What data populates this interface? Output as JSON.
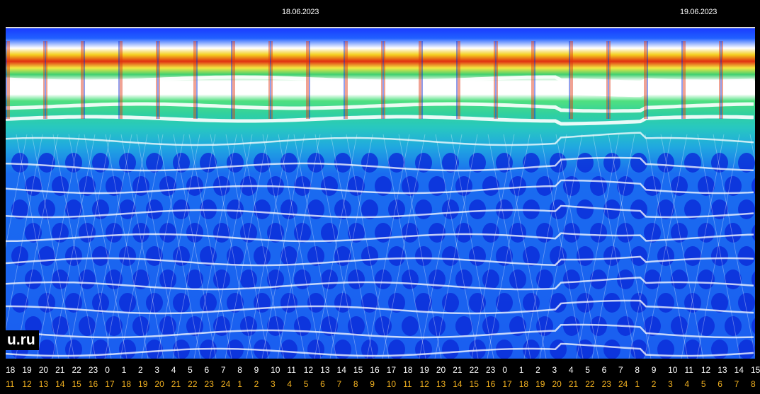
{
  "chart_data": {
    "type": "heatmap",
    "title": "",
    "date_labels": [
      "18.06.2023",
      "19.06.2023"
    ],
    "watermark": "u.ru",
    "x_ticks_top": [
      "18",
      "19",
      "20",
      "21",
      "22",
      "23",
      "0",
      "1",
      "2",
      "3",
      "4",
      "5",
      "6",
      "7",
      "8",
      "9",
      "10",
      "11",
      "12",
      "13",
      "14",
      "15",
      "16",
      "17",
      "18",
      "19",
      "20",
      "21",
      "22",
      "23",
      "0",
      "1",
      "2",
      "3",
      "4",
      "5",
      "6",
      "7",
      "8",
      "9",
      "10",
      "11",
      "12",
      "13",
      "14",
      "15"
    ],
    "x_ticks_bottom": [
      "11",
      "12",
      "13",
      "14",
      "15",
      "16",
      "17",
      "18",
      "19",
      "20",
      "21",
      "22",
      "23",
      "24",
      "1",
      "2",
      "3",
      "4",
      "5",
      "6",
      "7",
      "8",
      "9",
      "10",
      "11",
      "12",
      "13",
      "14",
      "15",
      "16",
      "17",
      "18",
      "19",
      "20",
      "21",
      "22",
      "23",
      "24",
      "1",
      "2",
      "3",
      "4",
      "5",
      "6",
      "7",
      "8"
    ],
    "colors": {
      "background": "#000000",
      "tick_top": "#ffffff",
      "tick_bottom": "#f0b020",
      "low": "#1a5ef0",
      "mid": "#28c8c0",
      "high": "#f4e840",
      "peak": "#e03010",
      "line": "#ffffff"
    }
  }
}
